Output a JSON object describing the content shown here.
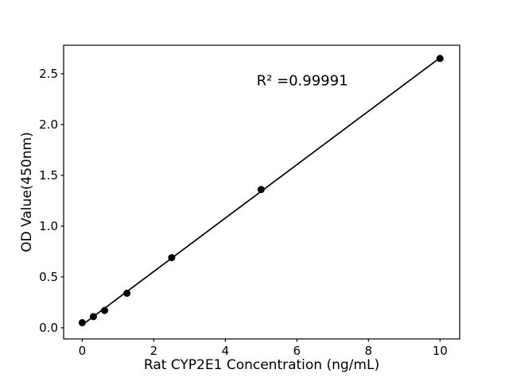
{
  "figure": {
    "background": "#ffffff",
    "ink_color": "#000000"
  },
  "chart_data": {
    "type": "scatter",
    "title": "",
    "xlabel": "Rat CYP2E1 Concentration (ng/mL)",
    "ylabel": "OD Value(450nm)",
    "series": [
      {
        "name": "standard-curve-points",
        "x": [
          0,
          0.3125,
          0.625,
          1.25,
          2.5,
          5,
          10
        ],
        "y": [
          0.05,
          0.11,
          0.17,
          0.34,
          0.69,
          1.36,
          2.65
        ],
        "marker": "filled-circle",
        "color": "#000000"
      }
    ],
    "fit_line": {
      "show": true,
      "method": "least-squares-linear",
      "x_start": 0,
      "x_end": 10,
      "color": "#000000"
    },
    "annotation": {
      "text": "R² =0.99991",
      "x": 6.15,
      "y": 2.43,
      "align": "center"
    },
    "xlim": [
      -0.52,
      10.55
    ],
    "ylim": [
      -0.11,
      2.78
    ],
    "xticks": [
      0,
      2,
      4,
      6,
      8,
      10
    ],
    "xtick_labels": [
      "0",
      "2",
      "4",
      "6",
      "8",
      "10"
    ],
    "yticks": [
      0,
      0.5,
      1,
      1.5,
      2,
      2.5
    ],
    "ytick_labels": [
      "0.0",
      "0.5",
      "1.0",
      "1.5",
      "2.0",
      "2.5"
    ],
    "grid": false,
    "legend": null
  }
}
